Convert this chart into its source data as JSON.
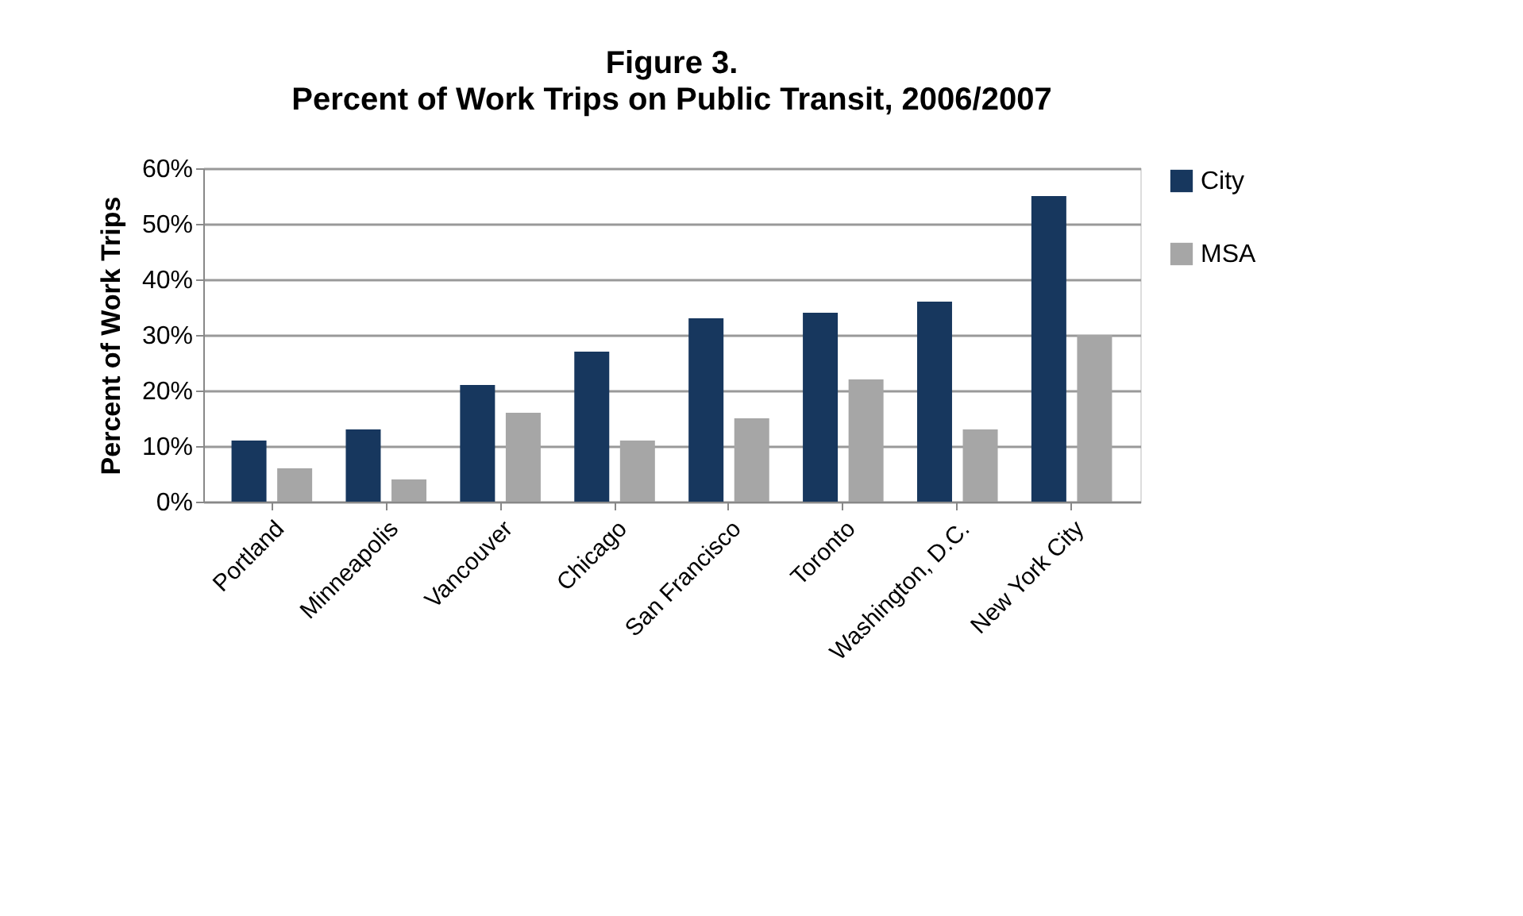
{
  "chart_data": {
    "type": "bar",
    "title": "Figure 3.",
    "subtitle": "Percent of Work Trips on Public Transit, 2006/2007",
    "ylabel": "Percent of Work Trips",
    "categories": [
      "Portland",
      "Minneapolis",
      "Vancouver",
      "Chicago",
      "San Francisco",
      "Toronto",
      "Washington, D.C.",
      "New York City"
    ],
    "series": [
      {
        "name": "City",
        "color": "#17375e",
        "values": [
          11,
          13,
          21,
          27,
          33,
          34,
          36,
          55
        ]
      },
      {
        "name": "MSA",
        "color": "#a6a6a6",
        "values": [
          6,
          4,
          16,
          11,
          15,
          22,
          13,
          30
        ]
      }
    ],
    "ylim": [
      0,
      60
    ],
    "yticks": [
      {
        "value": 0,
        "label": "0%"
      },
      {
        "value": 10,
        "label": "10%"
      },
      {
        "value": 20,
        "label": "20%"
      },
      {
        "value": 30,
        "label": "30%"
      },
      {
        "value": 40,
        "label": "40%"
      },
      {
        "value": 50,
        "label": "50%"
      },
      {
        "value": 60,
        "label": "60%"
      }
    ],
    "grid": "y",
    "legend": "right"
  }
}
